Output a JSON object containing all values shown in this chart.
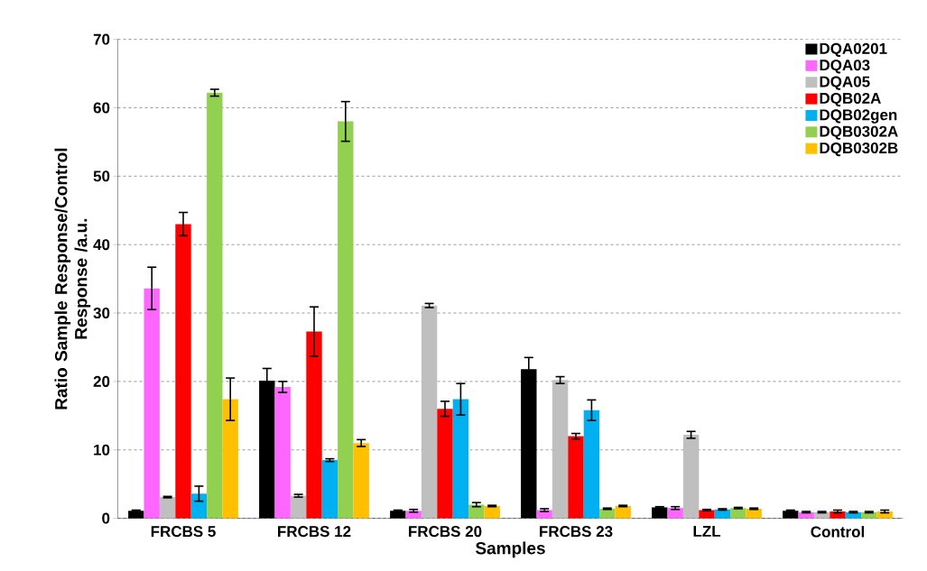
{
  "chart_data": {
    "type": "bar",
    "xlabel": "Samples",
    "ylabel": "Ratio Sample Response/Control Response /a.u.",
    "categories": [
      "FRCBS 5",
      "FRCBS 12",
      "FRCBS 20",
      "FRCBS 23",
      "LZL",
      "Control"
    ],
    "series": [
      {
        "name": "DQA0201",
        "color": "#000000",
        "values": [
          1.1,
          20.1,
          1.1,
          21.8,
          1.6,
          1.1
        ],
        "errors": [
          0.1,
          1.8,
          0.1,
          1.7,
          0.1,
          0.1
        ]
      },
      {
        "name": "DQA03",
        "color": "#ff66ff",
        "values": [
          33.6,
          19.2,
          1.1,
          1.2,
          1.5,
          0.9
        ],
        "errors": [
          3.1,
          0.8,
          0.2,
          0.2,
          0.2,
          0.1
        ]
      },
      {
        "name": "DQA05",
        "color": "#bfbfbf",
        "values": [
          3.1,
          3.3,
          31.1,
          20.2,
          12.2,
          0.9
        ],
        "errors": [
          0.1,
          0.2,
          0.3,
          0.5,
          0.5,
          0.1
        ]
      },
      {
        "name": "DQB02A",
        "color": "#ff0000",
        "values": [
          43.0,
          27.3,
          16.0,
          12.0,
          1.2,
          1.0
        ],
        "errors": [
          1.7,
          3.6,
          1.1,
          0.4,
          0.1,
          0.2
        ]
      },
      {
        "name": "DQB02gen",
        "color": "#00b0f0",
        "values": [
          3.6,
          8.5,
          17.4,
          15.8,
          1.3,
          0.9
        ],
        "errors": [
          1.1,
          0.2,
          2.3,
          1.5,
          0.1,
          0.1
        ]
      },
      {
        "name": "DQB0302A",
        "color": "#92d050",
        "values": [
          62.2,
          58.0,
          2.0,
          1.4,
          1.5,
          0.9
        ],
        "errors": [
          0.5,
          2.9,
          0.3,
          0.1,
          0.1,
          0.1
        ]
      },
      {
        "name": "DQB0302B",
        "color": "#ffc000",
        "values": [
          17.4,
          11.0,
          1.8,
          1.8,
          1.4,
          1.0
        ],
        "errors": [
          3.1,
          0.5,
          0.1,
          0.1,
          0.1,
          0.2
        ]
      }
    ],
    "ylim": [
      0,
      70
    ],
    "yticks": [
      0,
      10,
      20,
      30,
      40,
      50,
      60,
      70
    ],
    "grid": "y",
    "legend": "top right"
  }
}
